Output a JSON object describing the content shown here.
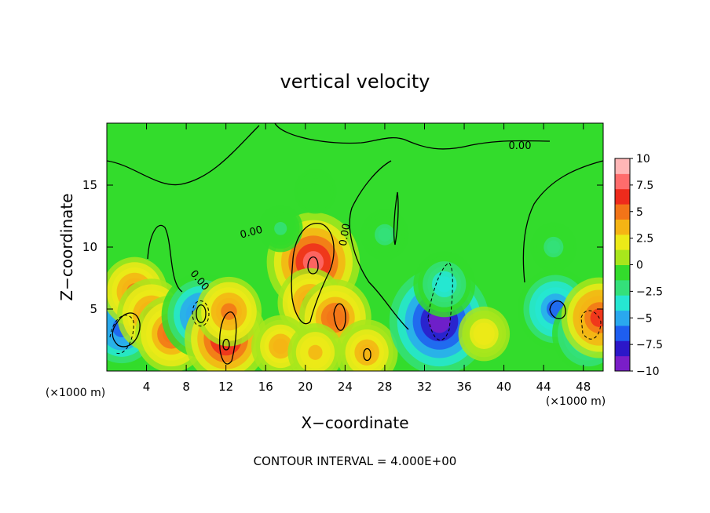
{
  "chart_data": {
    "type": "heatmap",
    "title": "vertical velocity",
    "xlabel": "X−coordinate",
    "ylabel": "Z−coordinate",
    "x_unit_left": "(×1000 m)",
    "x_unit_right": "(×1000 m)",
    "footer": "CONTOUR INTERVAL = 4.000E+00",
    "xlim": [
      0,
      50
    ],
    "ylim": [
      0,
      20
    ],
    "x_ticks": [
      4,
      8,
      12,
      16,
      20,
      24,
      28,
      32,
      36,
      40,
      44,
      48
    ],
    "x_tick_labels": [
      "4",
      "8",
      "12",
      "16",
      "20",
      "24",
      "28",
      "32",
      "36",
      "40",
      "44",
      "48"
    ],
    "y_ticks": [
      5,
      10,
      15
    ],
    "y_tick_labels": [
      "5",
      "10",
      "15"
    ],
    "contour_labels": [
      "0.00",
      "0.00",
      "0.00",
      "0.00"
    ],
    "colorbar": {
      "min": -10,
      "max": 10,
      "ticks": [
        10,
        7.5,
        5,
        2.5,
        0,
        -2.5,
        -5,
        -7.5,
        -10
      ],
      "tick_labels": [
        "10",
        "7.5",
        "5",
        "2.5",
        "0",
        "−2.5",
        "−5",
        "−7.5",
        "−10"
      ],
      "colors": [
        "#7a1ec8",
        "#2c17c8",
        "#1e5ef0",
        "#2aa8ee",
        "#26e6d2",
        "#34e07a",
        "#33dc2c",
        "#a8e61c",
        "#ecea18",
        "#f5b414",
        "#f27418",
        "#ee2b1c",
        "#ff6c6c",
        "#ffb6b6"
      ]
    },
    "features": [
      {
        "x": 1.5,
        "z": 3.5,
        "w": -6.5
      },
      {
        "x": 2.8,
        "z": 6.4,
        "w": 4.5
      },
      {
        "x": 4.5,
        "z": 4.5,
        "w": 5.0
      },
      {
        "x": 6.5,
        "z": 3.0,
        "w": 5.5
      },
      {
        "x": 9.5,
        "z": 4.5,
        "w": -6.5
      },
      {
        "x": 12.0,
        "z": 2.6,
        "w": 7.0
      },
      {
        "x": 12.3,
        "z": 4.8,
        "w": 4.5
      },
      {
        "x": 20.8,
        "z": 8.8,
        "w": 8.5
      },
      {
        "x": 20.5,
        "z": 5.5,
        "w": 4.5
      },
      {
        "x": 23.0,
        "z": 4.3,
        "w": 5.5
      },
      {
        "x": 17.5,
        "z": 2.0,
        "w": 3.5
      },
      {
        "x": 21.0,
        "z": 1.5,
        "w": 3.0
      },
      {
        "x": 26.2,
        "z": 1.5,
        "w": 4.0
      },
      {
        "x": 33.5,
        "z": 4.0,
        "w": -9.5
      },
      {
        "x": 34.0,
        "z": 7.0,
        "w": -4.0
      },
      {
        "x": 28.0,
        "z": 11.0,
        "w": -2.0
      },
      {
        "x": 45.2,
        "z": 5.0,
        "w": -6.0
      },
      {
        "x": 48.5,
        "z": 3.0,
        "w": -5.5
      },
      {
        "x": 49.6,
        "z": 4.3,
        "w": 6.0
      },
      {
        "x": 17.5,
        "z": 11.5,
        "w": -1.5
      },
      {
        "x": 21.0,
        "z": 14.5,
        "w": -1.2
      },
      {
        "x": 45.0,
        "z": 10.0,
        "w": -1.8
      },
      {
        "x": 38.0,
        "z": 3.0,
        "w": 2.5
      }
    ]
  }
}
